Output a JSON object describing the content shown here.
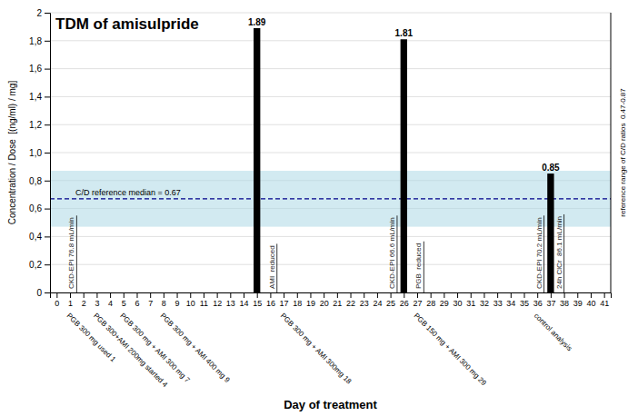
{
  "chart_data": {
    "type": "bar",
    "title": "TDM of amisulpride",
    "xlabel": "Day of treatment",
    "ylabel": "Concentration / Dose  [(ng/ml) / mg]",
    "right_label": "reference range of C/D ratios  0.47-0.87",
    "x": [
      15,
      26,
      37
    ],
    "values": [
      1.89,
      1.81,
      0.85
    ],
    "color": "#000000",
    "data_labels": true,
    "xlim": [
      -0.5,
      41.5
    ],
    "xticks": [
      0,
      1,
      2,
      3,
      4,
      5,
      6,
      7,
      8,
      9,
      10,
      11,
      12,
      13,
      14,
      15,
      16,
      17,
      18,
      19,
      20,
      21,
      22,
      23,
      24,
      25,
      26,
      27,
      28,
      29,
      30,
      31,
      32,
      33,
      34,
      35,
      36,
      37,
      38,
      39,
      40,
      41
    ],
    "ylim": [
      0,
      2.0
    ],
    "yticks": [
      0,
      {
        "value": 0.2,
        "label": "0,2"
      },
      {
        "value": 0.4,
        "label": "0,4"
      },
      {
        "value": 0.6,
        "label": "0,6"
      },
      {
        "value": 0.8,
        "label": "0,8"
      },
      {
        "value": 1.0,
        "label": "1,0"
      },
      {
        "value": 1.2,
        "label": "1,2"
      },
      {
        "value": 1.4,
        "label": "1,4"
      },
      {
        "value": 1.6,
        "label": "1,6"
      },
      {
        "value": 1.8,
        "label": "1,8"
      },
      2
    ],
    "grid": true,
    "reference_range": {
      "lower": 0.47,
      "upper": 0.87,
      "color": "#add8e6"
    },
    "median": {
      "value": 0.67,
      "label": "C/D reference median = 0.67",
      "color": "#00008b"
    },
    "vertical_labels": [
      {
        "x": 1.5,
        "text": "CKD-EPI 76.8 mL/min"
      },
      {
        "x": 16.5,
        "text": "AMI  reduced"
      },
      {
        "x": 25.5,
        "text": "CKD-EPI 66.6 mL/min"
      },
      {
        "x": 27.5,
        "text": "PGB  reduced"
      },
      {
        "x": 36.5,
        "text": "CKD-EPI 70.2 mL/min"
      },
      {
        "x": 38.0,
        "text": "24h ClCr  86.1 mL/min"
      }
    ],
    "bottom_annotations": [
      {
        "x": 1,
        "text": "PGB 300 mg used 1"
      },
      {
        "x": 3,
        "text": "PGB 300+AMI 200mg started 4"
      },
      {
        "x": 5,
        "text": "PGB 300 mg + AMI 300 mg 7"
      },
      {
        "x": 8,
        "text": "PGB 300 mg + AMI 400 mg 9"
      },
      {
        "x": 17,
        "text": "PGB 300 mg + AMI 300mg 18"
      },
      {
        "x": 27,
        "text": "PGB 150 mg + AMI 300 mg 29"
      },
      {
        "x": 36,
        "text": "control analysis"
      }
    ]
  }
}
